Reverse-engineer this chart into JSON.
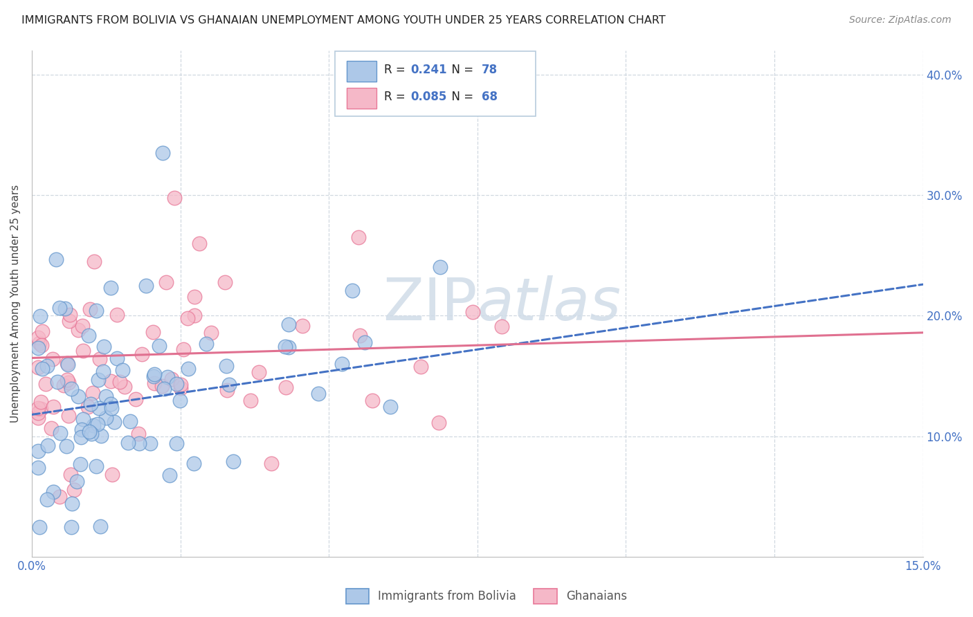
{
  "title": "IMMIGRANTS FROM BOLIVIA VS GHANAIAN UNEMPLOYMENT AMONG YOUTH UNDER 25 YEARS CORRELATION CHART",
  "source": "Source: ZipAtlas.com",
  "ylabel": "Unemployment Among Youth under 25 years",
  "xlim": [
    0.0,
    0.15
  ],
  "ylim": [
    0.0,
    0.42
  ],
  "xticks": [
    0.0,
    0.025,
    0.05,
    0.075,
    0.1,
    0.125,
    0.15
  ],
  "yticks": [
    0.0,
    0.1,
    0.2,
    0.3,
    0.4
  ],
  "yticklabels": [
    "",
    "10.0%",
    "20.0%",
    "30.0%",
    "40.0%"
  ],
  "blue_R": "0.241",
  "blue_N": "78",
  "pink_R": "0.085",
  "pink_N": "68",
  "blue_fill": "#adc8e8",
  "pink_fill": "#f5b8c8",
  "blue_edge": "#6496cc",
  "pink_edge": "#e87898",
  "blue_line": "#4472c4",
  "pink_line": "#e07090",
  "label_color": "#4472c4",
  "grid_color": "#d0d8e0",
  "title_color": "#222222",
  "source_color": "#888888",
  "watermark_color": "#d0dce8",
  "title_fontsize": 11.5,
  "source_fontsize": 10
}
